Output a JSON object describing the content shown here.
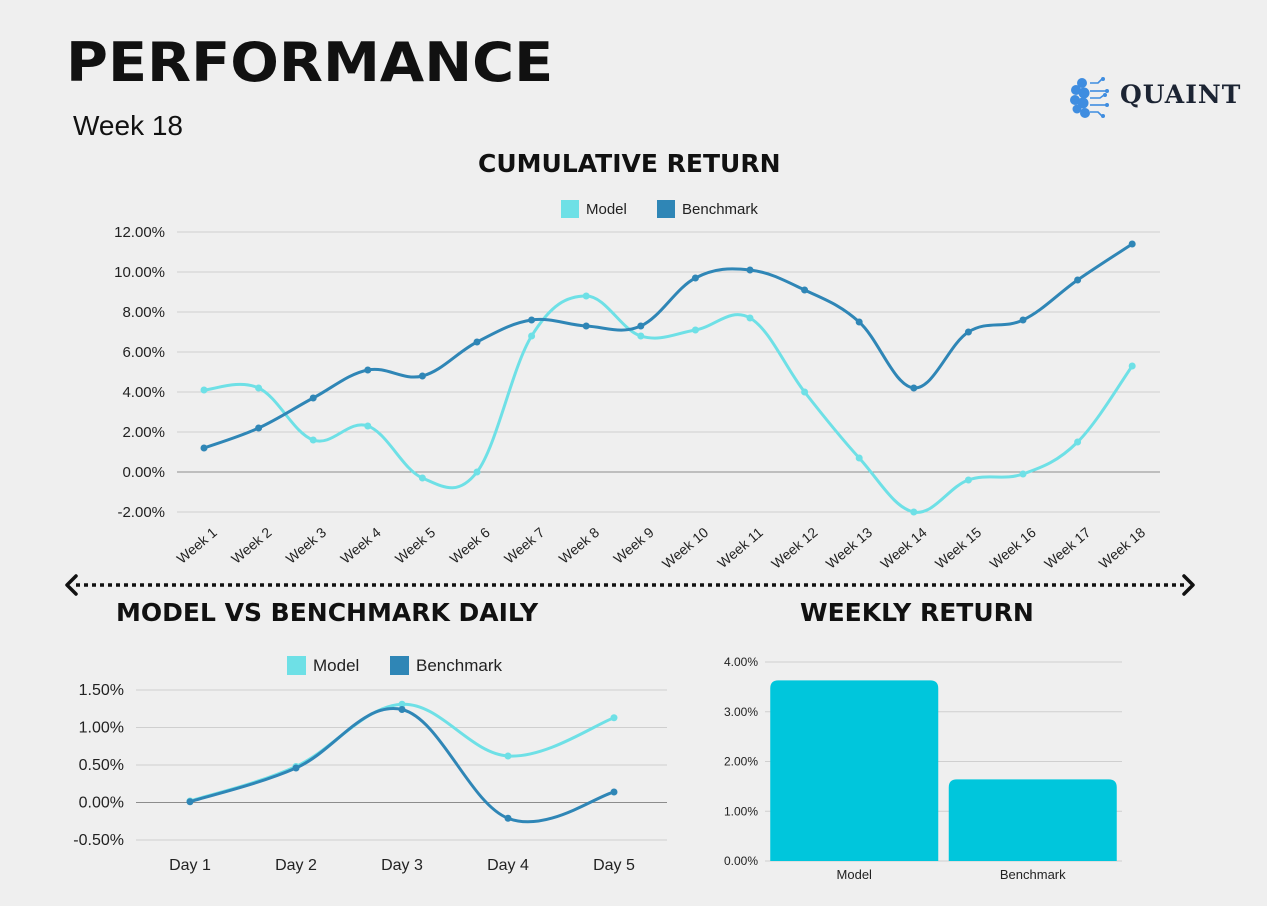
{
  "header": {
    "title": "PERFORMANCE",
    "subtitle": "Week 18",
    "logo_text": "QUAINT"
  },
  "colors": {
    "model": "#6ee0e6",
    "benchmark": "#2f86b6",
    "bar": "#00c6dc",
    "grid": "#cfcfcf",
    "zero_line": "#8c8c8c",
    "logo_blue": "#3f8de0"
  },
  "chart_data": [
    {
      "id": "cumulative",
      "type": "line",
      "title": "CUMULATIVE RETURN",
      "categories": [
        "Week 1",
        "Week 2",
        "Week 3",
        "Week 4",
        "Week 5",
        "Week 6",
        "Week 7",
        "Week 8",
        "Week 9",
        "Week 10",
        "Week 11",
        "Week 12",
        "Week 13",
        "Week 14",
        "Week 15",
        "Week 16",
        "Week 17",
        "Week 18"
      ],
      "series": [
        {
          "name": "Model",
          "values": [
            4.1,
            4.2,
            1.6,
            2.3,
            -0.3,
            0.0,
            6.8,
            8.8,
            6.8,
            7.1,
            7.7,
            4.0,
            0.7,
            -2.0,
            -0.4,
            -0.1,
            1.5,
            5.3
          ]
        },
        {
          "name": "Benchmark",
          "values": [
            1.2,
            2.2,
            3.7,
            5.1,
            4.8,
            6.5,
            7.6,
            7.3,
            7.3,
            9.7,
            10.1,
            9.1,
            7.5,
            4.2,
            7.0,
            7.6,
            9.6,
            11.4
          ]
        }
      ],
      "ylim": [
        -2,
        12
      ],
      "yticks": [
        "12.00%",
        "10.00%",
        "8.00%",
        "6.00%",
        "4.00%",
        "2.00%",
        "0.00%",
        "-2.00%"
      ],
      "legend": [
        "Model",
        "Benchmark"
      ],
      "legend_position": "top-center"
    },
    {
      "id": "daily",
      "type": "line",
      "title": "MODEL VS BENCHMARK DAILY",
      "categories": [
        "Day 1",
        "Day 2",
        "Day 3",
        "Day 4",
        "Day 5"
      ],
      "series": [
        {
          "name": "Model",
          "values": [
            0.02,
            0.48,
            1.31,
            0.62,
            1.13
          ]
        },
        {
          "name": "Benchmark",
          "values": [
            0.01,
            0.46,
            1.24,
            -0.21,
            0.14
          ]
        }
      ],
      "ylim": [
        -0.5,
        1.5
      ],
      "yticks": [
        "1.50%",
        "1.00%",
        "0.50%",
        "0.00%",
        "-0.50%"
      ],
      "legend": [
        "Model",
        "Benchmark"
      ],
      "legend_position": "top-center"
    },
    {
      "id": "weekly",
      "type": "bar",
      "title": "WEEKLY RETURN",
      "categories": [
        "Model",
        "Benchmark"
      ],
      "values": [
        3.63,
        1.64
      ],
      "ylim": [
        0,
        4
      ],
      "yticks": [
        "4.00%",
        "3.00%",
        "2.00%",
        "1.00%",
        "0.00%"
      ]
    }
  ]
}
